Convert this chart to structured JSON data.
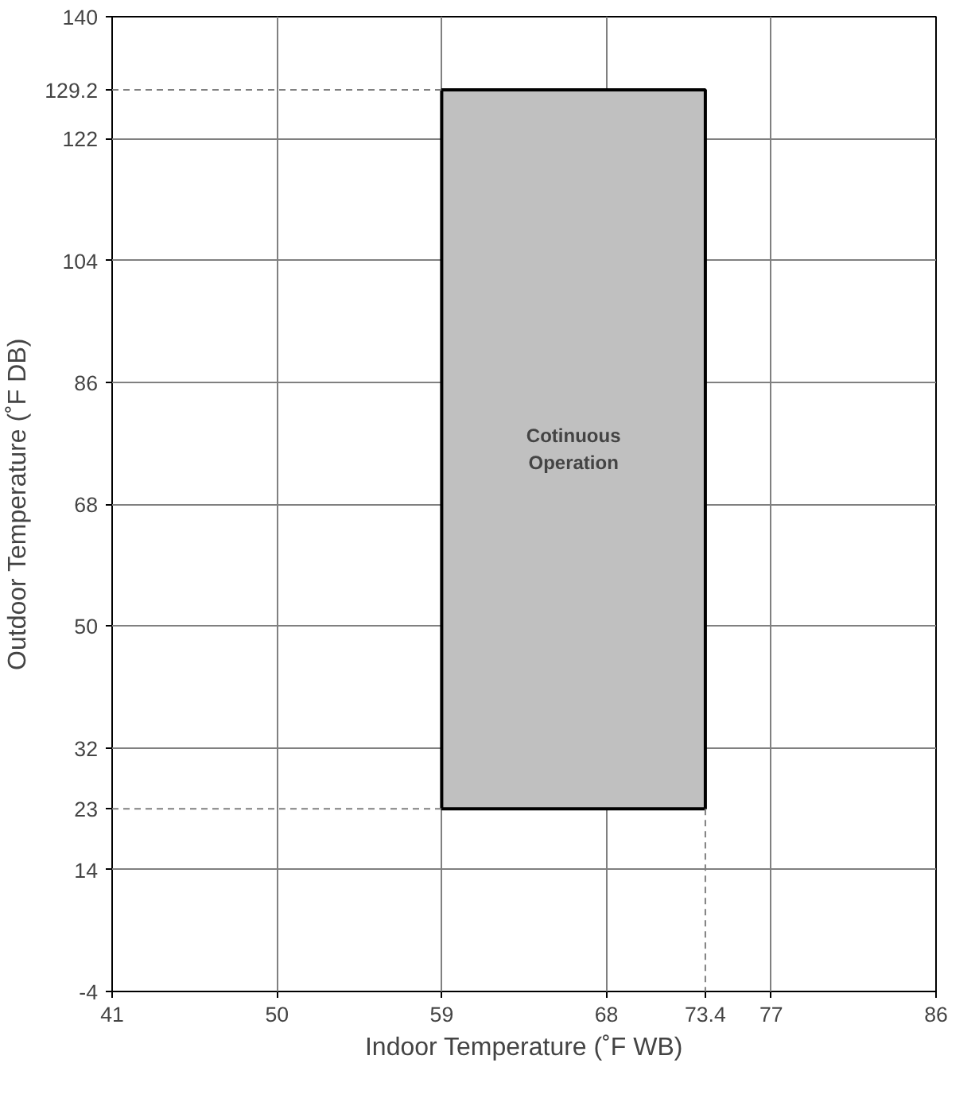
{
  "chart_data": {
    "type": "area",
    "xlabel": "Indoor Temperature (˚F WB)",
    "ylabel": "Outdoor Temperature (˚F DB)",
    "xlim": [
      41,
      86
    ],
    "xticks": [
      41,
      50,
      59,
      68,
      73.4,
      77,
      86
    ],
    "ylim": [
      -4,
      140
    ],
    "yticks": [
      -4,
      14,
      23,
      32,
      50,
      68,
      86,
      104,
      122,
      129.2,
      140
    ],
    "grid": true,
    "series": [
      {
        "color": "#c0c0c0",
        "x": [
          59,
          59,
          73.4,
          73.4
        ],
        "values": [
          23,
          129.2,
          129.2,
          23
        ]
      },
      {
        "type": "line",
        "color": "#808080",
        "line_style": "dashed",
        "x": [
          41,
          59
        ],
        "values": [
          129.2,
          129.2
        ]
      },
      {
        "type": "line",
        "color": "#808080",
        "line_style": "dashed",
        "x": [
          41,
          59
        ],
        "values": [
          23,
          23
        ]
      },
      {
        "type": "line",
        "color": "#808080",
        "line_style": "dashed",
        "x": [
          73.4,
          73.4
        ],
        "values": [
          23,
          -4
        ]
      }
    ],
    "annotations": [
      "Cotinuous\nOperation"
    ]
  }
}
